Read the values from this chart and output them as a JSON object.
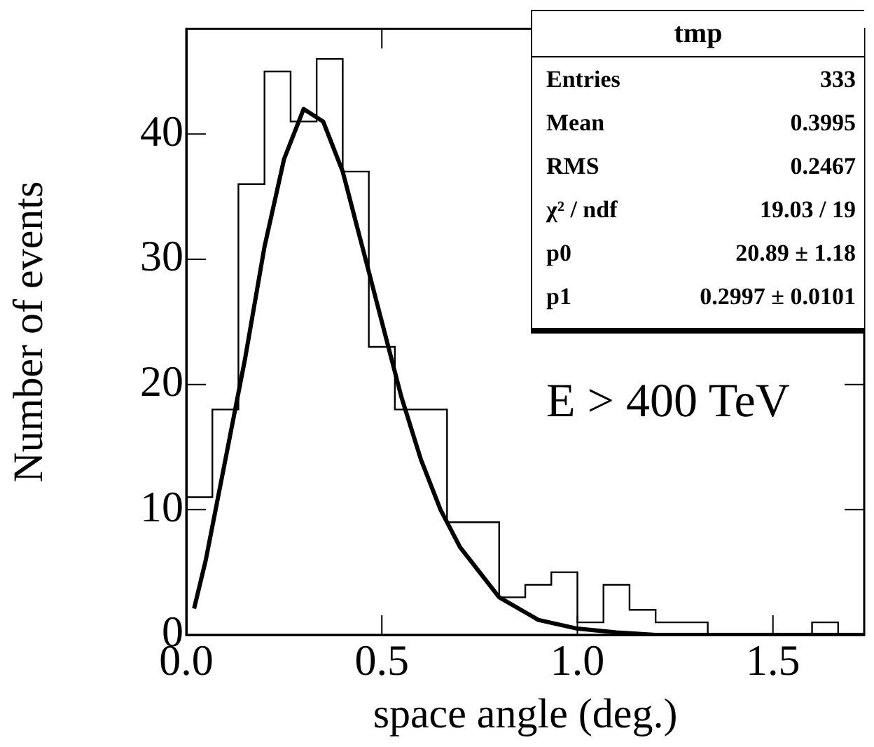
{
  "chart_data": {
    "type": "histogram",
    "xlabel": "space angle (deg.)",
    "ylabel": "Number of events",
    "bins": [
      0,
      0.0667,
      0.1333,
      0.2,
      0.2667,
      0.3333,
      0.4,
      0.4667,
      0.5333,
      0.6,
      0.6667,
      0.7333,
      0.8,
      0.8667,
      0.9333,
      1,
      1.0667,
      1.1333,
      1.2,
      1.2667,
      1.3333,
      1.4,
      1.4667,
      1.5333,
      1.6,
      1.6667,
      1.7333
    ],
    "values": [
      11,
      18,
      36,
      45,
      41,
      46,
      37,
      23,
      18,
      18,
      9,
      9,
      3,
      4,
      5,
      1,
      4,
      2,
      1,
      1,
      0,
      0,
      0,
      0,
      1,
      0
    ],
    "color": "#000000",
    "series": [
      {
        "type": "line",
        "color": "#000000",
        "x": [
          0.02,
          0.05,
          0.1,
          0.15,
          0.2,
          0.25,
          0.3,
          0.35,
          0.4,
          0.45,
          0.5,
          0.55,
          0.6,
          0.65,
          0.7,
          0.8,
          0.9,
          1.0,
          1.1,
          1.2,
          1.4,
          1.7333
        ],
        "values": [
          2.1,
          6,
          14,
          22,
          31,
          38,
          42,
          41,
          37,
          31,
          25,
          19,
          14,
          10,
          7,
          3,
          1.2,
          0.5,
          0.2,
          0,
          0,
          0
        ]
      }
    ],
    "xlim": [
      0,
      1.7333
    ],
    "ylim": [
      0,
      48.4
    ],
    "xticks": [
      {
        "value": 0,
        "label": "0.0"
      },
      {
        "value": 0.5,
        "label": "0.5"
      },
      {
        "value": 1,
        "label": "1.0"
      },
      {
        "value": 1.5,
        "label": "1.5"
      }
    ],
    "yticks": [
      0,
      10,
      20,
      30,
      40
    ],
    "grid": false,
    "legend": false,
    "marker": "none",
    "line_style": "solid",
    "annotations": [
      "tmp",
      "Entries",
      "333",
      "Mean",
      "0.3995",
      "RMS",
      "0.2467",
      "χ² / ndf",
      "19.03 / 19",
      "p0",
      "20.89 ± 1.18",
      "p1",
      "0.2997 ± 0.0101",
      "E > 400 TeV"
    ]
  }
}
